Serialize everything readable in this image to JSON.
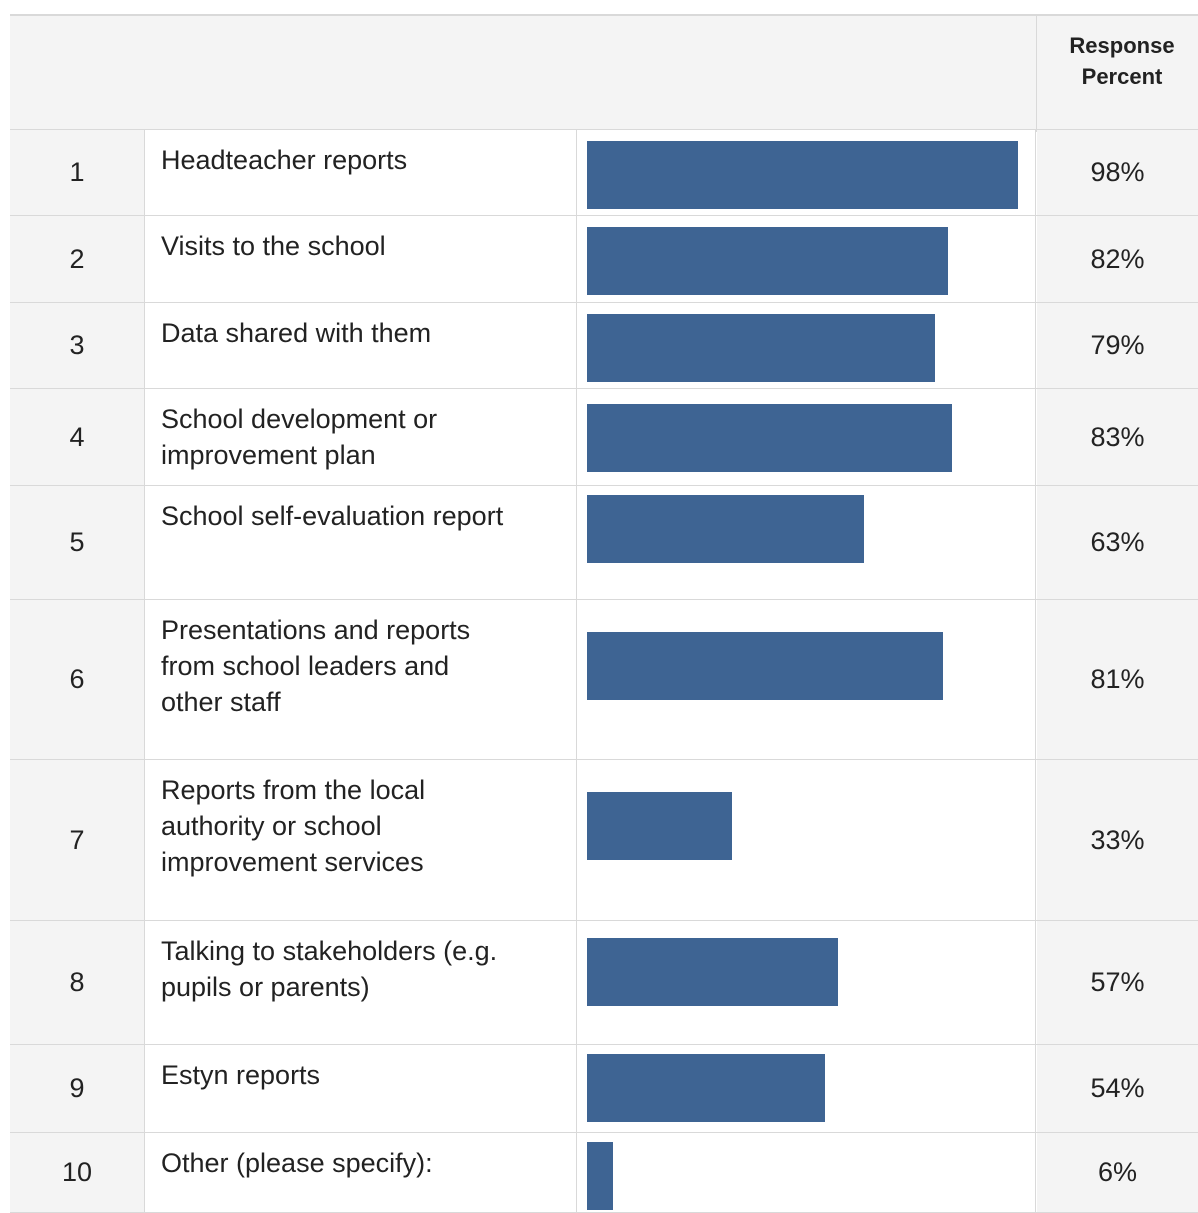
{
  "table": {
    "header_label": "Response\nPercent"
  },
  "chart_data": {
    "type": "bar",
    "orientation": "horizontal",
    "categories": [
      "Headteacher reports",
      "Visits to the school",
      "Data shared with them",
      "School development or\nimprovement plan",
      "School self-evaluation report",
      "Presentations and reports\nfrom school leaders and\nother staff",
      "Reports from the local\nauthority or school\nimprovement services",
      "Talking to stakeholders (e.g.\npupils or parents)",
      "Estyn reports",
      "Other (please specify):"
    ],
    "row_numbers": [
      "1",
      "2",
      "3",
      "4",
      "5",
      "6",
      "7",
      "8",
      "9",
      "10"
    ],
    "values": [
      98,
      82,
      79,
      83,
      63,
      81,
      33,
      57,
      54,
      6
    ],
    "value_labels": [
      "98%",
      "82%",
      "79%",
      "83%",
      "63%",
      "81%",
      "33%",
      "57%",
      "54%",
      "6%"
    ],
    "column_header": "Response\nPercent",
    "xlim": [
      0,
      100
    ],
    "bar_color": "#3e6493",
    "grid": false
  }
}
